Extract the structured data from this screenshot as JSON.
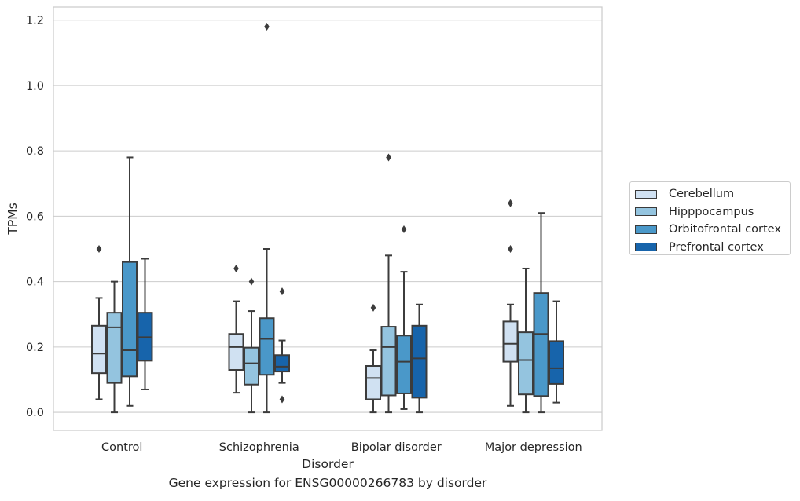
{
  "chart_data": {
    "type": "box",
    "title": "",
    "caption": "Gene expression for ENSG00000266783 by disorder",
    "xlabel": "Disorder",
    "ylabel": "TPMs",
    "ylim": [
      -0.055,
      1.24
    ],
    "yticks": [
      "0.0",
      "0.2",
      "0.4",
      "0.6",
      "0.8",
      "1.0",
      "1.2"
    ],
    "ytick_values": [
      0.0,
      0.2,
      0.4,
      0.6,
      0.8,
      1.0,
      1.2
    ],
    "grid": "horizontal",
    "legend_position": "right",
    "categories": [
      "Control",
      "Schizophrenia",
      "Bipolar disorder",
      "Major depression"
    ],
    "series": [
      {
        "name": "Cerebellum",
        "color": "#d0e1f2",
        "boxes": [
          {
            "whislo": 0.04,
            "q1": 0.12,
            "med": 0.18,
            "q3": 0.265,
            "whishi": 0.35,
            "fliers": [
              0.5
            ]
          },
          {
            "whislo": 0.06,
            "q1": 0.13,
            "med": 0.2,
            "q3": 0.24,
            "whishi": 0.34,
            "fliers": [
              0.44
            ]
          },
          {
            "whislo": 0.0,
            "q1": 0.04,
            "med": 0.105,
            "q3": 0.142,
            "whishi": 0.19,
            "fliers": [
              0.32
            ]
          },
          {
            "whislo": 0.02,
            "q1": 0.155,
            "med": 0.21,
            "q3": 0.278,
            "whishi": 0.33,
            "fliers": [
              0.5,
              0.64
            ]
          }
        ]
      },
      {
        "name": "Hipppocampus",
        "color": "#94c4df",
        "boxes": [
          {
            "whislo": 0.0,
            "q1": 0.09,
            "med": 0.26,
            "q3": 0.305,
            "whishi": 0.4,
            "fliers": []
          },
          {
            "whislo": 0.0,
            "q1": 0.085,
            "med": 0.15,
            "q3": 0.198,
            "whishi": 0.31,
            "fliers": [
              0.4
            ]
          },
          {
            "whislo": 0.0,
            "q1": 0.052,
            "med": 0.2,
            "q3": 0.262,
            "whishi": 0.48,
            "fliers": [
              0.78
            ]
          },
          {
            "whislo": 0.0,
            "q1": 0.055,
            "med": 0.16,
            "q3": 0.245,
            "whishi": 0.44,
            "fliers": []
          }
        ]
      },
      {
        "name": "Orbitofrontal cortex",
        "color": "#4a98c9",
        "boxes": [
          {
            "whislo": 0.02,
            "q1": 0.11,
            "med": 0.19,
            "q3": 0.46,
            "whishi": 0.78,
            "fliers": []
          },
          {
            "whislo": 0.0,
            "q1": 0.115,
            "med": 0.225,
            "q3": 0.288,
            "whishi": 0.5,
            "fliers": [
              1.18
            ]
          },
          {
            "whislo": 0.01,
            "q1": 0.058,
            "med": 0.155,
            "q3": 0.235,
            "whishi": 0.43,
            "fliers": [
              0.56
            ]
          },
          {
            "whislo": 0.0,
            "q1": 0.05,
            "med": 0.24,
            "q3": 0.365,
            "whishi": 0.61,
            "fliers": []
          }
        ]
      },
      {
        "name": "Prefrontal cortex",
        "color": "#1764ab",
        "boxes": [
          {
            "whislo": 0.07,
            "q1": 0.158,
            "med": 0.23,
            "q3": 0.305,
            "whishi": 0.47,
            "fliers": []
          },
          {
            "whislo": 0.09,
            "q1": 0.125,
            "med": 0.14,
            "q3": 0.175,
            "whishi": 0.22,
            "fliers": [
              0.04,
              0.37
            ]
          },
          {
            "whislo": 0.0,
            "q1": 0.045,
            "med": 0.165,
            "q3": 0.265,
            "whishi": 0.33,
            "fliers": []
          },
          {
            "whislo": 0.03,
            "q1": 0.087,
            "med": 0.135,
            "q3": 0.218,
            "whishi": 0.34,
            "fliers": []
          }
        ]
      }
    ]
  }
}
